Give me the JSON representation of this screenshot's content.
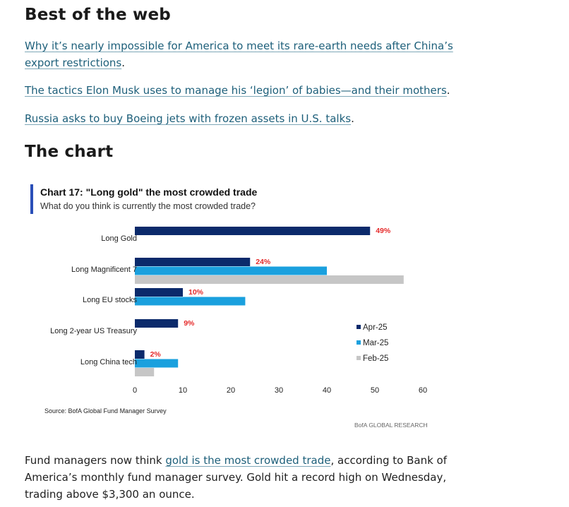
{
  "best_of_web": {
    "heading": "Best of the web",
    "links": [
      {
        "text": "Why it’s nearly impossible for America to meet its rare-earth needs after China’s export restrictions",
        "suffix": "."
      },
      {
        "text": "The tactics Elon Musk uses to manage his ‘legion’ of babies—and their mothers",
        "suffix": "."
      },
      {
        "text": "Russia asks to buy Boeing jets with frozen assets in U.S. talks",
        "suffix": "."
      }
    ]
  },
  "the_chart": {
    "heading": "The chart"
  },
  "chart_data": {
    "type": "bar",
    "orientation": "horizontal",
    "title": "Chart 17: \"Long gold\" the most crowded trade",
    "subtitle": "What do you think is currently the most crowded trade?",
    "categories": [
      "Long Gold",
      "Long Magnificent 7",
      "Long EU stocks",
      "Long 2-year US Treasury",
      "Long China tech"
    ],
    "series": [
      {
        "name": "Apr-25",
        "color": "#0b2a6b",
        "values": [
          49,
          24,
          10,
          9,
          2
        ]
      },
      {
        "name": "Mar-25",
        "color": "#1aa0de",
        "values": [
          null,
          40,
          23,
          null,
          9
        ]
      },
      {
        "name": "Feb-25",
        "color": "#c6c6c6",
        "values": [
          null,
          56,
          null,
          null,
          4
        ]
      }
    ],
    "data_labels": [
      "49%",
      "24%",
      "10%",
      "9%",
      "2%"
    ],
    "label_color": "#e52a2a",
    "xlim": [
      0,
      60
    ],
    "xticks": [
      0,
      10,
      20,
      30,
      40,
      50,
      60
    ],
    "legend_position": "right",
    "accent_bar_color": "#2a4fb8",
    "source": "Source: BofA Global Fund Manager Survey",
    "brand": "BofA GLOBAL RESEARCH"
  },
  "article": {
    "before": "Fund managers now think ",
    "link_text": "gold is the most crowded trade",
    "after": ", according to Bank of America’s monthly fund manager survey. Gold hit a record high on Wednesday, trading above $3,300 an ounce."
  }
}
